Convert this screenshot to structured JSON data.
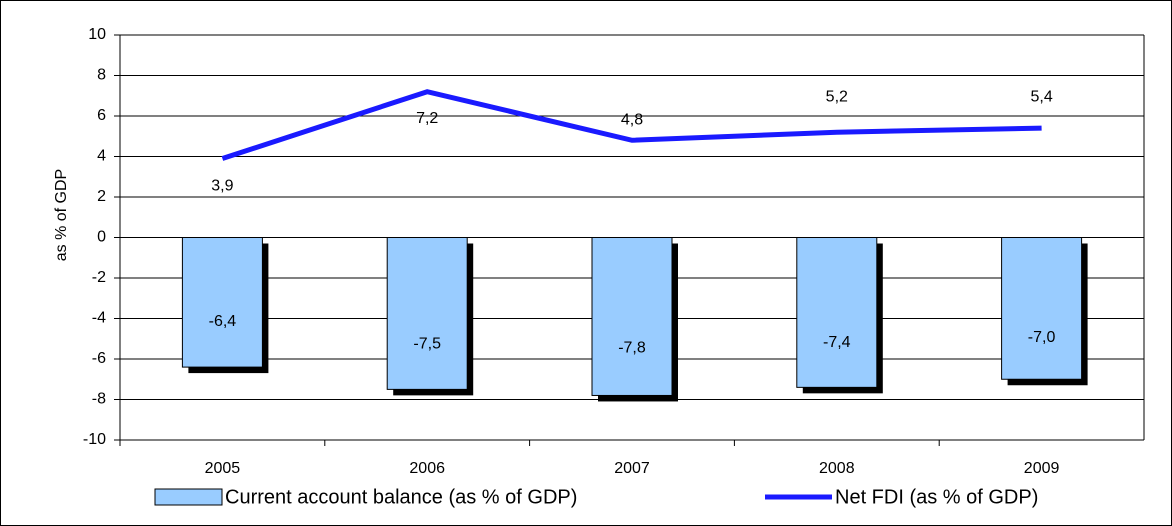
{
  "chart_data": {
    "type": "bar",
    "y_label": "as % of GDP",
    "categories": [
      "2005",
      "2006",
      "2007",
      "2008",
      "2009"
    ],
    "series": [
      {
        "name": "Current account balance (as % of GDP)",
        "type": "bar",
        "color": "#99ccff",
        "values": [
          -6.4,
          -7.5,
          -7.8,
          -7.4,
          -7.0
        ],
        "value_labels": [
          "-6,4",
          "-7,5",
          "-7,8",
          "-7,4",
          "-7,0"
        ]
      },
      {
        "name": "Net FDI (as % of GDP)",
        "type": "line",
        "color": "#1a1aff",
        "values": [
          3.9,
          7.2,
          4.8,
          5.2,
          5.4
        ],
        "value_labels": [
          "3,9",
          "7,2",
          "4,8",
          "5,2",
          "5,4"
        ]
      }
    ],
    "ylim": [
      -10,
      10
    ],
    "yticks": [
      -10,
      -8,
      -6,
      -4,
      -2,
      0,
      2,
      4,
      6,
      8,
      10
    ],
    "grid": true,
    "legend": "bottom"
  }
}
